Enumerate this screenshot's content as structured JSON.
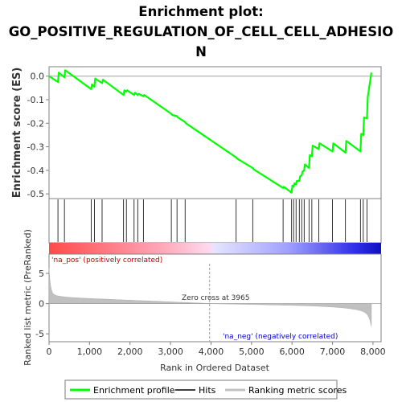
{
  "chart_data": {
    "type": "line",
    "title_lines": [
      "Enrichment plot:",
      "GO_POSITIVE_REGULATION_OF_CELL_CELL_ADHESIO",
      "N"
    ],
    "xlabel": "Rank in Ordered Dataset",
    "ylabel_top": "Enrichment score (ES)",
    "ylabel_bottom": "Ranked list metric (PreRanked)",
    "xlim": [
      0,
      8200
    ],
    "ylim_top": [
      -0.52,
      0.04
    ],
    "ylim_bottom": [
      -6.3,
      8.2
    ],
    "x_ticks": [
      0,
      1000,
      2000,
      3000,
      4000,
      5000,
      6000,
      7000,
      8000
    ],
    "x_tick_labels": [
      "0",
      "1,000",
      "2,000",
      "3,000",
      "4,000",
      "5,000",
      "6,000",
      "7,000",
      "8,000"
    ],
    "y_ticks_top": [
      0.0,
      -0.1,
      -0.2,
      -0.3,
      -0.4,
      -0.5
    ],
    "y_tick_labels_top": [
      "0.0",
      "-0.1",
      "-0.2",
      "-0.3",
      "-0.4",
      "-0.5"
    ],
    "y_ticks_bottom": [
      5,
      0,
      -5
    ],
    "y_tick_labels_bottom": [
      "5",
      "0",
      "-5"
    ],
    "zero_cross": 3965,
    "zero_cross_label": "Zero cross at 3965",
    "pos_label": "'na_pos' (positively correlated)",
    "neg_label": "'na_neg' (negatively correlated)",
    "legend": {
      "placement": "bottom",
      "entries": [
        "Enrichment profile",
        "Hits",
        "Ranking metric scores"
      ]
    },
    "colors": {
      "profile": "#00ff00",
      "hits": "#000000",
      "metric": "#c0c0c0",
      "pos": "#ff0000",
      "neg": "#0000ff",
      "zero_line": "#a0a0a0"
    },
    "series": [
      {
        "name": "Enrichment profile",
        "x": [
          0,
          220,
          240,
          380,
          400,
          1040,
          1060,
          1120,
          1140,
          1310,
          1330,
          1840,
          1860,
          1910,
          1930,
          2100,
          2120,
          2190,
          2210,
          2330,
          2350,
          3020,
          3040,
          3160,
          3180,
          3360,
          3380,
          4620,
          4640,
          5030,
          5050,
          5780,
          5800,
          5990,
          6010,
          6040,
          6060,
          6100,
          6120,
          6180,
          6200,
          6240,
          6260,
          6300,
          6320,
          6420,
          6440,
          6490,
          6510,
          6660,
          6680,
          7000,
          7020,
          7320,
          7340,
          7690,
          7710,
          7760,
          7780,
          7850,
          7870,
          7960
        ],
        "y": [
          0.0,
          -0.025,
          0.015,
          -0.005,
          0.025,
          -0.055,
          -0.035,
          -0.045,
          -0.01,
          -0.03,
          -0.015,
          -0.08,
          -0.06,
          -0.065,
          -0.06,
          -0.08,
          -0.07,
          -0.08,
          -0.075,
          -0.085,
          -0.08,
          -0.16,
          -0.165,
          -0.17,
          -0.175,
          -0.195,
          -0.2,
          -0.345,
          -0.35,
          -0.39,
          -0.395,
          -0.475,
          -0.47,
          -0.495,
          -0.465,
          -0.47,
          -0.455,
          -0.46,
          -0.445,
          -0.445,
          -0.425,
          -0.42,
          -0.405,
          -0.4,
          -0.375,
          -0.39,
          -0.335,
          -0.34,
          -0.295,
          -0.31,
          -0.285,
          -0.32,
          -0.285,
          -0.325,
          -0.275,
          -0.32,
          -0.245,
          -0.25,
          -0.175,
          -0.18,
          -0.09,
          0.015
        ]
      }
    ],
    "hits": [
      220,
      380,
      1040,
      1120,
      1310,
      1840,
      1910,
      2100,
      2190,
      2330,
      3020,
      3160,
      3360,
      4620,
      5030,
      5780,
      5990,
      6040,
      6100,
      6180,
      6240,
      6300,
      6420,
      6490,
      6660,
      7000,
      7320,
      7690,
      7760,
      7850
    ]
  }
}
